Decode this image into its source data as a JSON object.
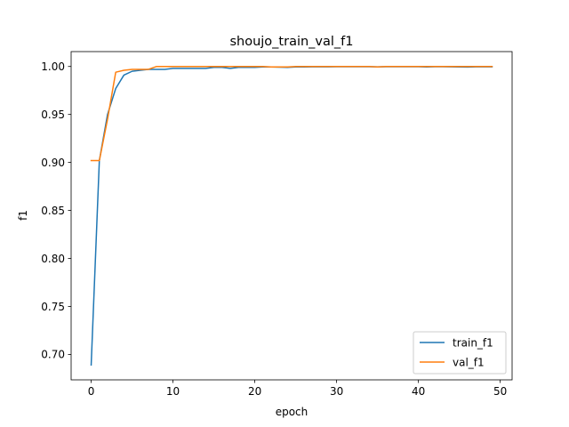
{
  "chart_data": {
    "type": "line",
    "title": "shoujo_train_val_f1",
    "xlabel": "epoch",
    "ylabel": "f1",
    "xlim": [
      -2.45,
      51.45
    ],
    "ylim": [
      0.6735,
      1.0155
    ],
    "xticks": [
      0,
      10,
      20,
      30,
      40,
      50
    ],
    "yticks": [
      0.7,
      0.75,
      0.8,
      0.85,
      0.9,
      0.95,
      1.0
    ],
    "xtick_labels": [
      "0",
      "10",
      "20",
      "30",
      "40",
      "50"
    ],
    "ytick_labels": [
      "0.70",
      "0.75",
      "0.80",
      "0.85",
      "0.90",
      "0.95",
      "1.00"
    ],
    "grid": false,
    "legend_position": "lower-right",
    "x": [
      0,
      1,
      2,
      3,
      4,
      5,
      6,
      7,
      8,
      9,
      10,
      11,
      12,
      13,
      14,
      15,
      16,
      17,
      18,
      19,
      20,
      21,
      22,
      23,
      24,
      25,
      26,
      27,
      28,
      29,
      30,
      31,
      32,
      33,
      34,
      35,
      36,
      37,
      38,
      39,
      40,
      41,
      42,
      43,
      44,
      45,
      46,
      47,
      48,
      49
    ],
    "series": [
      {
        "name": "train_f1",
        "color": "#1f77b4",
        "values": [
          0.689,
          0.902,
          0.95,
          0.977,
          0.991,
          0.995,
          0.996,
          0.997,
          0.997,
          0.997,
          0.998,
          0.998,
          0.998,
          0.998,
          0.998,
          0.999,
          0.999,
          0.998,
          0.999,
          0.999,
          0.999,
          0.9995,
          0.9995,
          0.9993,
          0.999,
          0.9995,
          0.9995,
          0.9996,
          0.9996,
          0.9996,
          0.9997,
          0.9997,
          0.9997,
          0.9997,
          0.9997,
          0.9996,
          0.9997,
          0.9997,
          0.9997,
          0.9997,
          0.9997,
          0.9995,
          0.9997,
          0.9997,
          0.9996,
          0.9995,
          0.9994,
          0.9996,
          0.9997,
          0.9996
        ]
      },
      {
        "name": "val_f1",
        "color": "#ff7f0e",
        "values": [
          0.902,
          0.902,
          0.945,
          0.994,
          0.996,
          0.997,
          0.997,
          0.997,
          1.0,
          1.0,
          1.0,
          1.0,
          1.0,
          1.0,
          1.0,
          1.0,
          1.0,
          1.0,
          1.0,
          1.0,
          1.0,
          1.0,
          0.9995,
          0.9995,
          0.9995,
          1.0,
          1.0,
          1.0,
          1.0,
          1.0,
          1.0,
          1.0,
          1.0,
          1.0,
          1.0,
          0.9995,
          1.0,
          1.0,
          1.0,
          1.0,
          1.0,
          1.0,
          1.0,
          1.0,
          1.0,
          1.0,
          1.0,
          1.0,
          1.0,
          1.0
        ]
      }
    ]
  }
}
